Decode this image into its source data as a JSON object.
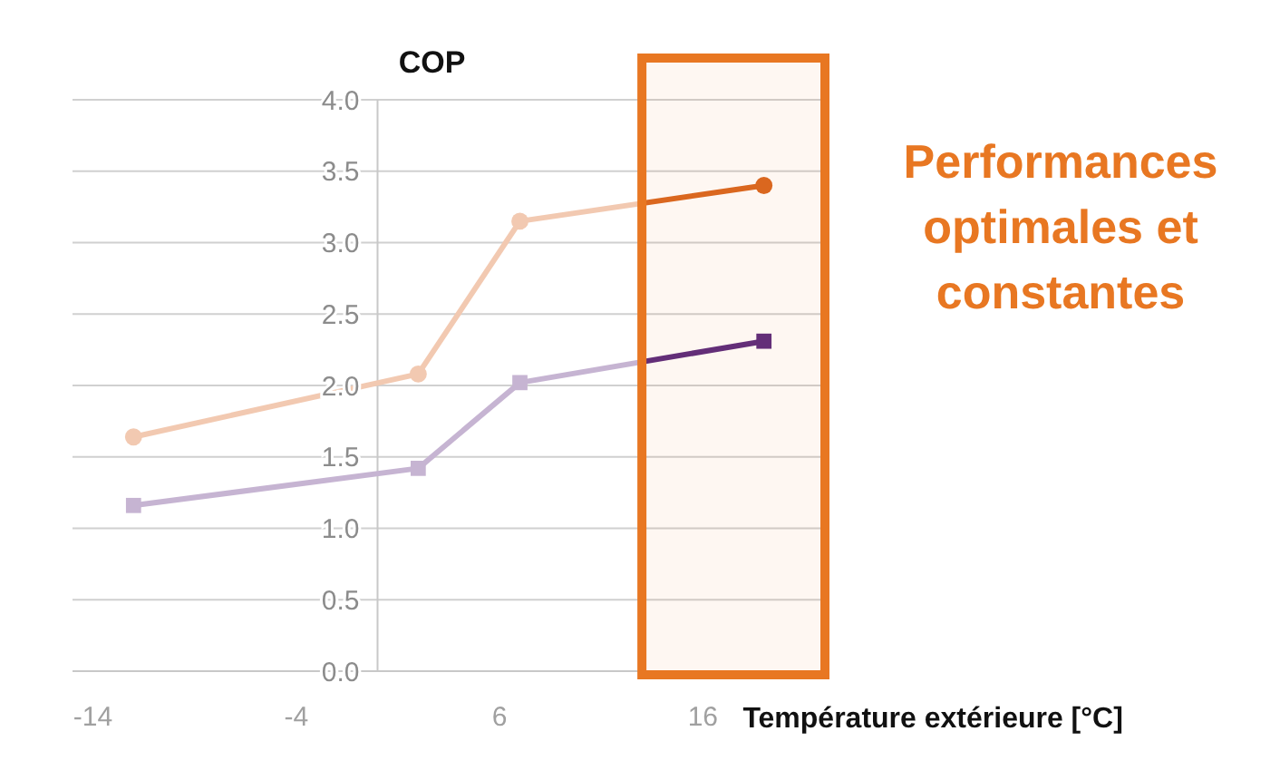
{
  "chart_data": {
    "type": "line",
    "title": "COP",
    "xlabel": "Température extérieure [°C]",
    "xlim": [
      -15,
      22
    ],
    "xticks": [
      -14,
      -4,
      6,
      16
    ],
    "ylim": [
      0,
      4
    ],
    "yticks": [
      {
        "value": 0,
        "label": "0.0"
      },
      {
        "value": 0.5,
        "label": "0.5"
      },
      {
        "value": 1,
        "label": "1.0"
      },
      {
        "value": 1.5,
        "label": "1.5"
      },
      {
        "value": 2,
        "label": "2.0"
      },
      {
        "value": 2.5,
        "label": "2.5"
      },
      {
        "value": 3,
        "label": "3.0"
      },
      {
        "value": 3.5,
        "label": "3.5"
      },
      {
        "value": 4,
        "label": "4.0"
      }
    ],
    "grid": "y",
    "series": [
      {
        "color": "#d9661f",
        "marker": "circle",
        "x": [
          -12,
          2,
          7,
          19
        ],
        "values": [
          1.64,
          2.08,
          3.15,
          3.4
        ]
      },
      {
        "color": "#5b2a7e",
        "marker": "square",
        "x": [
          -12,
          2,
          7,
          19
        ],
        "values": [
          1.16,
          1.42,
          2.02,
          2.31
        ]
      }
    ],
    "bands": [
      {
        "axis": "x",
        "from": 13,
        "to": 22,
        "label": "Performances optimales et constantes",
        "color": "#e87722"
      }
    ]
  }
}
